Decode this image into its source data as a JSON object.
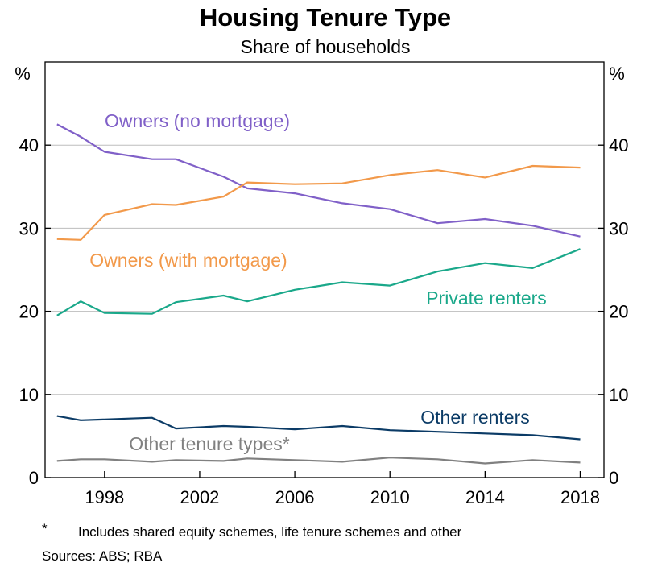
{
  "chart_data": {
    "type": "line",
    "title": "Housing Tenure Type",
    "subtitle": "Share of households",
    "ylabel_left": "%",
    "ylabel_right": "%",
    "ylim": [
      0,
      50
    ],
    "yticks": [
      0,
      10,
      20,
      30,
      40
    ],
    "xlim": [
      1995.5,
      2019
    ],
    "xticks": [
      1998,
      2002,
      2006,
      2010,
      2014,
      2018
    ],
    "grid": true,
    "series": [
      {
        "name": "Owners (no mortgage)",
        "color": "#8060c8",
        "points": [
          [
            1996,
            42.5
          ],
          [
            1997,
            41.0
          ],
          [
            1998,
            39.2
          ],
          [
            2000,
            38.3
          ],
          [
            2001,
            38.3
          ],
          [
            2003,
            36.2
          ],
          [
            2004,
            34.8
          ],
          [
            2006,
            34.2
          ],
          [
            2008,
            33.0
          ],
          [
            2010,
            32.3
          ],
          [
            2012,
            30.6
          ],
          [
            2014,
            31.1
          ],
          [
            2016,
            30.3
          ],
          [
            2018,
            29.0
          ]
        ]
      },
      {
        "name": "Owners (with mortgage)",
        "color": "#f2994a",
        "points": [
          [
            1996,
            28.7
          ],
          [
            1997,
            28.6
          ],
          [
            1998,
            31.6
          ],
          [
            2000,
            32.9
          ],
          [
            2001,
            32.8
          ],
          [
            2003,
            33.8
          ],
          [
            2004,
            35.5
          ],
          [
            2006,
            35.3
          ],
          [
            2008,
            35.4
          ],
          [
            2010,
            36.4
          ],
          [
            2012,
            37.0
          ],
          [
            2014,
            36.1
          ],
          [
            2016,
            37.5
          ],
          [
            2018,
            37.3
          ]
        ]
      },
      {
        "name": "Private renters",
        "color": "#1aa88a",
        "points": [
          [
            1996,
            19.5
          ],
          [
            1997,
            21.2
          ],
          [
            1998,
            19.8
          ],
          [
            2000,
            19.7
          ],
          [
            2001,
            21.1
          ],
          [
            2003,
            21.9
          ],
          [
            2004,
            21.2
          ],
          [
            2006,
            22.6
          ],
          [
            2008,
            23.5
          ],
          [
            2010,
            23.1
          ],
          [
            2012,
            24.8
          ],
          [
            2014,
            25.8
          ],
          [
            2016,
            25.2
          ],
          [
            2018,
            27.5
          ]
        ]
      },
      {
        "name": "Other renters",
        "color": "#0b3b66",
        "points": [
          [
            1996,
            7.4
          ],
          [
            1997,
            6.9
          ],
          [
            1998,
            7.0
          ],
          [
            2000,
            7.2
          ],
          [
            2001,
            5.9
          ],
          [
            2003,
            6.2
          ],
          [
            2004,
            6.1
          ],
          [
            2006,
            5.8
          ],
          [
            2008,
            6.2
          ],
          [
            2010,
            5.7
          ],
          [
            2012,
            5.5
          ],
          [
            2014,
            5.3
          ],
          [
            2016,
            5.1
          ],
          [
            2018,
            4.6
          ]
        ]
      },
      {
        "name": "Other tenure types*",
        "color": "#808080",
        "points": [
          [
            1996,
            2.0
          ],
          [
            1997,
            2.2
          ],
          [
            1998,
            2.2
          ],
          [
            2000,
            1.9
          ],
          [
            2001,
            2.1
          ],
          [
            2003,
            2.0
          ],
          [
            2004,
            2.3
          ],
          [
            2006,
            2.1
          ],
          [
            2008,
            1.9
          ],
          [
            2010,
            2.4
          ],
          [
            2012,
            2.2
          ],
          [
            2014,
            1.7
          ],
          [
            2016,
            2.1
          ],
          [
            2018,
            1.8
          ]
        ]
      }
    ]
  },
  "footnote": {
    "marker": "*",
    "text": "Includes shared equity schemes, life tenure schemes and other",
    "sources": "Sources: ABS; RBA"
  }
}
